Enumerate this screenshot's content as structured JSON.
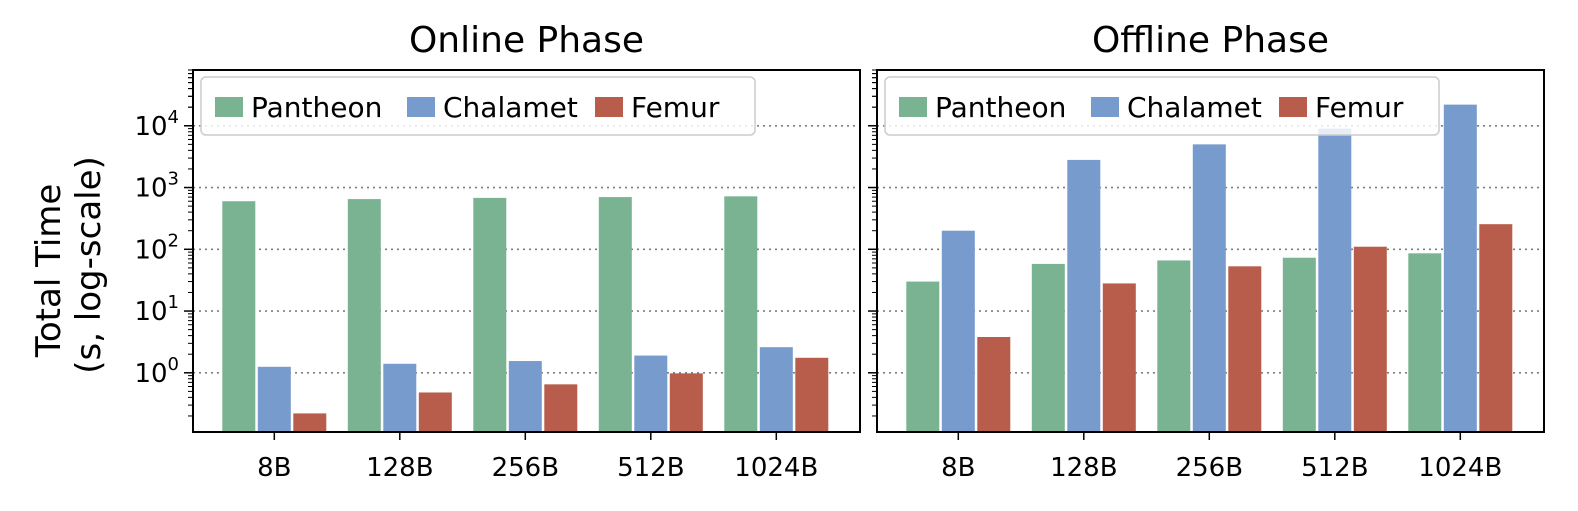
{
  "ylabel_lines": [
    "Total Time",
    "(s, log-scale)"
  ],
  "chart_data": [
    {
      "type": "bar",
      "title": "Online Phase",
      "categories": [
        "8B",
        "128B",
        "256B",
        "512B",
        "1024B"
      ],
      "yscale": "log",
      "ylim": [
        0.11,
        80000
      ],
      "yticks": [
        1,
        10,
        100,
        1000,
        10000
      ],
      "grid": "y, dotted",
      "legend_position": "top-left",
      "series": [
        {
          "name": "Pantheon",
          "color": "#7ab391",
          "values": [
            600,
            650,
            680,
            700,
            720
          ]
        },
        {
          "name": "Chalamet",
          "color": "#789bcd",
          "values": [
            1.25,
            1.4,
            1.55,
            1.9,
            2.6
          ]
        },
        {
          "name": "Femur",
          "color": "#b85c4b",
          "values": [
            0.22,
            0.48,
            0.65,
            0.98,
            1.75
          ]
        }
      ]
    },
    {
      "type": "bar",
      "title": "Offline Phase",
      "categories": [
        "8B",
        "128B",
        "256B",
        "512B",
        "1024B"
      ],
      "yscale": "log",
      "ylim": [
        0.11,
        80000
      ],
      "yticks": [
        1,
        10,
        100,
        1000,
        10000
      ],
      "grid": "y, dotted",
      "legend_position": "top-left",
      "series": [
        {
          "name": "Pantheon",
          "color": "#7ab391",
          "values": [
            30,
            58,
            66,
            73,
            86
          ]
        },
        {
          "name": "Chalamet",
          "color": "#789bcd",
          "values": [
            200,
            2800,
            5000,
            9000,
            22000
          ]
        },
        {
          "name": "Femur",
          "color": "#b85c4b",
          "values": [
            3.8,
            28,
            53,
            110,
            255
          ]
        }
      ]
    }
  ]
}
